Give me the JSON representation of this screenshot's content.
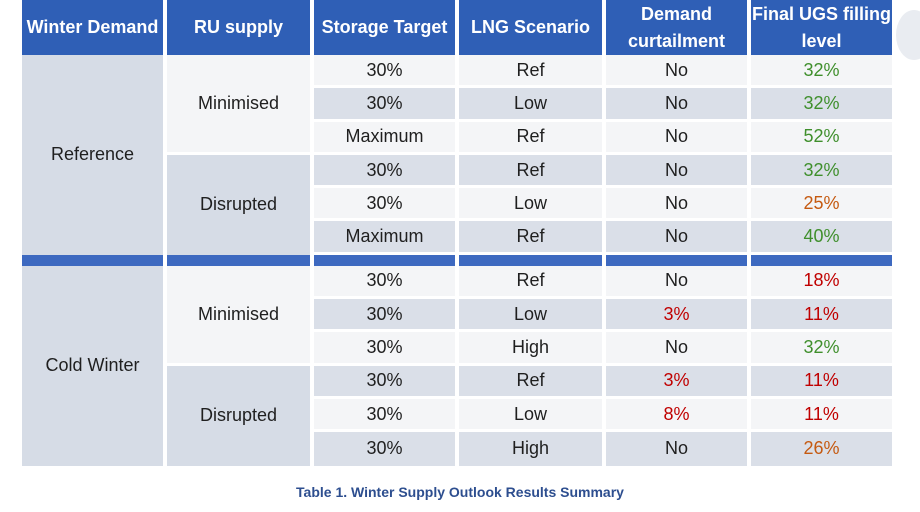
{
  "headers": {
    "winter_demand": "Winter Demand",
    "ru_supply": "RU supply",
    "storage_target": "Storage Target",
    "lng_scenario": "LNG Scenario",
    "demand_curtailment": "Demand curtailment",
    "final_ugs": "Final UGS filling level"
  },
  "groups": {
    "reference": "Reference",
    "cold_winter": "Cold Winter",
    "minimised": "Minimised",
    "disrupted": "Disrupted"
  },
  "rows": [
    {
      "storage": "30%",
      "lng": "Ref",
      "curtailment": "No",
      "ugs": "32%"
    },
    {
      "storage": "30%",
      "lng": "Low",
      "curtailment": "No",
      "ugs": "32%"
    },
    {
      "storage": "Maximum",
      "lng": "Ref",
      "curtailment": "No",
      "ugs": "52%"
    },
    {
      "storage": "30%",
      "lng": "Ref",
      "curtailment": "No",
      "ugs": "32%"
    },
    {
      "storage": "30%",
      "lng": "Low",
      "curtailment": "No",
      "ugs": "25%"
    },
    {
      "storage": "Maximum",
      "lng": "Ref",
      "curtailment": "No",
      "ugs": "40%"
    },
    {
      "storage": "30%",
      "lng": "Ref",
      "curtailment": "No",
      "ugs": "18%"
    },
    {
      "storage": "30%",
      "lng": "Low",
      "curtailment": "3%",
      "ugs": "11%"
    },
    {
      "storage": "30%",
      "lng": "High",
      "curtailment": "No",
      "ugs": "32%"
    },
    {
      "storage": "30%",
      "lng": "Ref",
      "curtailment": "3%",
      "ugs": "11%"
    },
    {
      "storage": "30%",
      "lng": "Low",
      "curtailment": "8%",
      "ugs": "11%"
    },
    {
      "storage": "30%",
      "lng": "High",
      "curtailment": "No",
      "ugs": "26%"
    }
  ],
  "colors": {
    "header_blue": "#2f5fb6",
    "green": "#3f8f2c",
    "orange": "#c55a11",
    "red": "#c00000"
  },
  "caption": "Table 1. Winter Supply Outlook Results Summary"
}
